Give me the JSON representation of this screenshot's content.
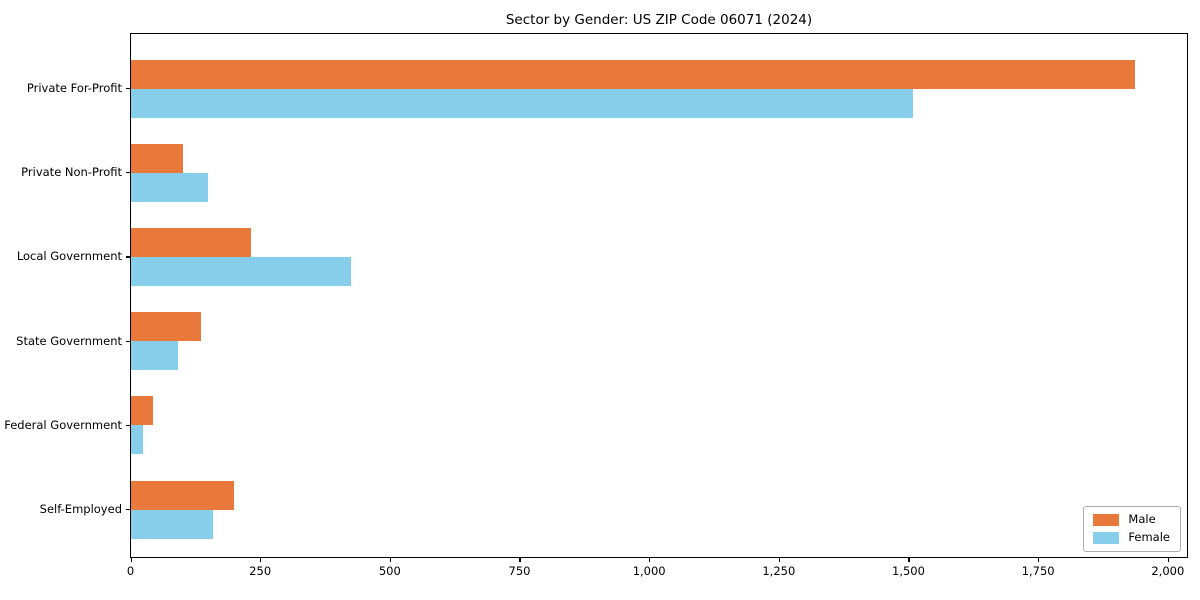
{
  "chart_data": {
    "type": "bar",
    "orientation": "horizontal",
    "title": "Sector by Gender: US ZIP Code 06071 (2024)",
    "xlabel": "",
    "ylabel": "",
    "categories": [
      "Private For-Profit",
      "Private Non-Profit",
      "Local Government",
      "State Government",
      "Federal Government",
      "Self-Employed"
    ],
    "series": [
      {
        "name": "Male",
        "color": "#e8793b",
        "values": [
          1936,
          100,
          232,
          135,
          42,
          198
        ]
      },
      {
        "name": "Female",
        "color": "#87ceeb",
        "values": [
          1507,
          148,
          425,
          90,
          24,
          158
        ]
      }
    ],
    "xlim": [
      0,
      2036
    ],
    "x_ticks": [
      0,
      250,
      500,
      750,
      1000,
      1250,
      1500,
      1750,
      2000
    ],
    "x_tick_labels": [
      "0",
      "250",
      "500",
      "750",
      "1,000",
      "1,250",
      "1,500",
      "1,750",
      "2,000"
    ],
    "grid": false,
    "legend_position": "lower right"
  }
}
